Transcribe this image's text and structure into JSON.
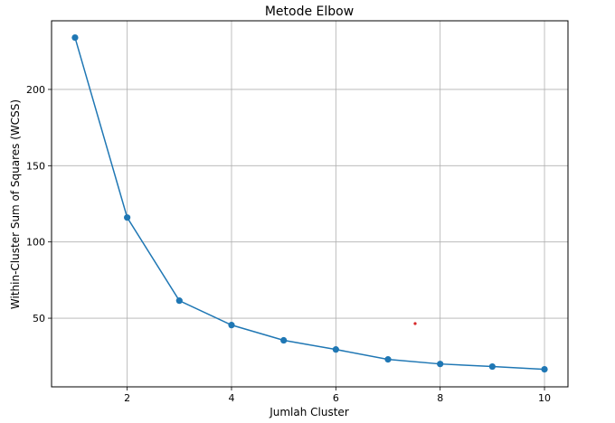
{
  "chart_data": {
    "type": "line",
    "title": "Metode Elbow",
    "xlabel": "Jumlah Cluster",
    "ylabel": "Within-Cluster Sum of Squares (WCSS)",
    "x": [
      1,
      2,
      3,
      4,
      5,
      6,
      7,
      8,
      9,
      10
    ],
    "series": [
      {
        "values": [
          234,
          116,
          61.5,
          45.5,
          35.5,
          29.5,
          23,
          20,
          18.3,
          16.5
        ]
      }
    ],
    "xlim": [
      0.55,
      10.45
    ],
    "ylim": [
      5,
      245
    ],
    "xticks": [
      2,
      4,
      6,
      8,
      10
    ],
    "yticks": [
      50,
      100,
      150,
      200
    ],
    "grid": true,
    "line_color": "#1f77b4",
    "annotations": [
      {
        "type": "point",
        "x": 7.52,
        "y": 46.5,
        "color": "#d62728"
      }
    ]
  }
}
